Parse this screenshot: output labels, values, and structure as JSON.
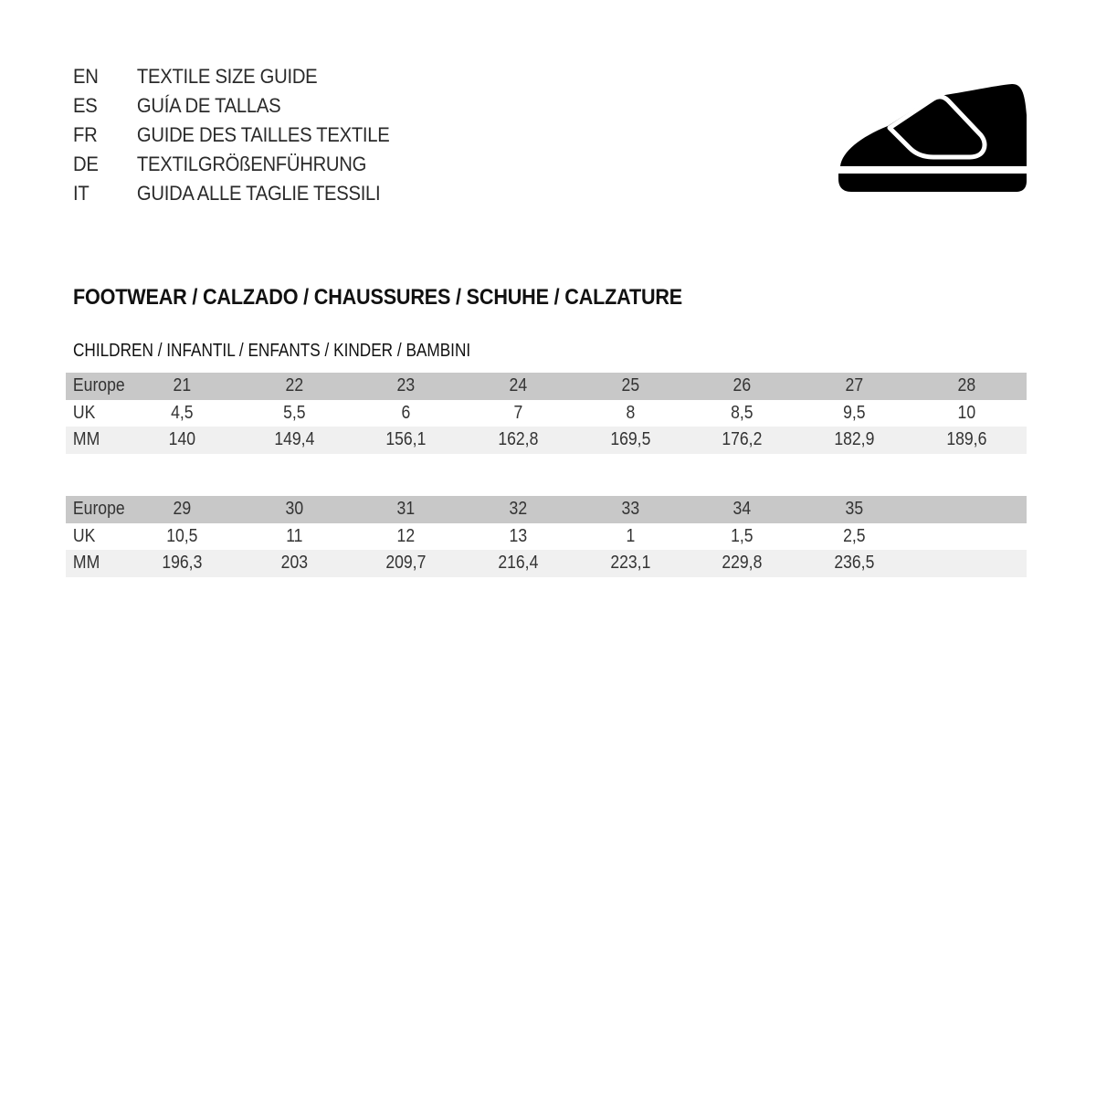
{
  "languages": [
    {
      "code": "EN",
      "title": "TEXTILE SIZE GUIDE"
    },
    {
      "code": "ES",
      "title": "GUÍA DE TALLAS"
    },
    {
      "code": "FR",
      "title": "GUIDE DES TAILLES TEXTILE"
    },
    {
      "code": "DE",
      "title": "TEXTILGRÖßENFÜHRUNG"
    },
    {
      "code": "IT",
      "title": "GUIDA ALLE TAGLIE TESSILI"
    }
  ],
  "icon": "children-shoe-velcro-icon",
  "heading": "FOOTWEAR / CALZADO / CHAUSSURES / SCHUHE / CALZATURE",
  "subheading": "CHILDREN / INFANTIL / ENFANTS / KINDER / BAMBINI",
  "tables": [
    {
      "rows": [
        {
          "label": "Europe",
          "values": [
            "21",
            "22",
            "23",
            "24",
            "25",
            "26",
            "27",
            "28"
          ]
        },
        {
          "label": "UK",
          "values": [
            "4,5",
            "5,5",
            "6",
            "7",
            "8",
            "8,5",
            "9,5",
            "10"
          ]
        },
        {
          "label": "MM",
          "values": [
            "140",
            "149,4",
            "156,1",
            "162,8",
            "169,5",
            "176,2",
            "182,9",
            "189,6"
          ]
        }
      ]
    },
    {
      "rows": [
        {
          "label": "Europe",
          "values": [
            "29",
            "30",
            "31",
            "32",
            "33",
            "34",
            "35",
            ""
          ]
        },
        {
          "label": "UK",
          "values": [
            "10,5",
            "11",
            "12",
            "13",
            "1",
            "1,5",
            "2,5",
            ""
          ]
        },
        {
          "label": "MM",
          "values": [
            "196,3",
            "203",
            "209,7",
            "216,4",
            "223,1",
            "229,8",
            "236,5",
            ""
          ]
        }
      ]
    }
  ]
}
